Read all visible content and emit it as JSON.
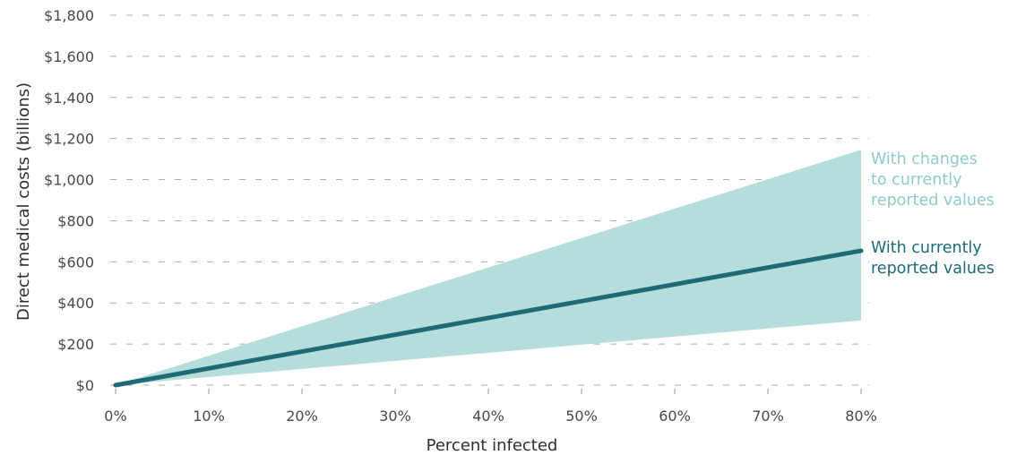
{
  "chart_data": {
    "type": "area",
    "xlabel": "Percent infected",
    "ylabel": "Direct medical costs (billions)",
    "xlim": [
      0,
      80
    ],
    "ylim": [
      0,
      1800
    ],
    "x_ticks": [
      0,
      10,
      20,
      30,
      40,
      50,
      60,
      70,
      80
    ],
    "x_tick_labels": [
      "0%",
      "10%",
      "20%",
      "30%",
      "40%",
      "50%",
      "60%",
      "70%",
      "80%"
    ],
    "y_ticks": [
      0,
      200,
      400,
      600,
      800,
      1000,
      1200,
      1400,
      1600,
      1800
    ],
    "y_tick_labels": [
      "$0",
      "$200",
      "$400",
      "$600",
      "$800",
      "$1,000",
      "$1,200",
      "$1,400",
      "$1,600",
      "$1,800"
    ],
    "grid": "horizontal dashed",
    "series": [
      {
        "name": "With changes to currently reported values",
        "kind": "range",
        "color": "#b5dddc",
        "x": [
          0,
          80
        ],
        "lower": [
          0,
          315
        ],
        "upper": [
          0,
          1145
        ],
        "label_lines": [
          "With changes",
          "to currently",
          "reported values"
        ]
      },
      {
        "name": "With currently reported values",
        "kind": "line",
        "color": "#1e6a77",
        "x": [
          0,
          80
        ],
        "values": [
          0,
          654
        ],
        "label_lines": [
          "With currently",
          "reported values"
        ]
      }
    ]
  }
}
